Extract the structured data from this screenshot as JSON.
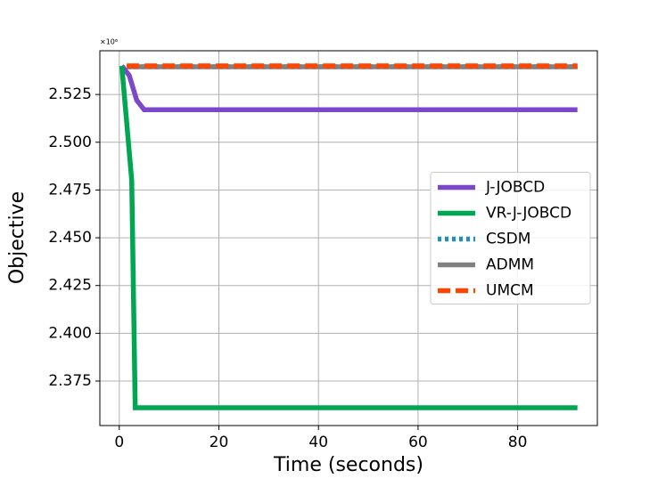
{
  "chart_data": {
    "type": "line",
    "x_label": "Time (seconds)",
    "y_label": "Objective",
    "offset_text": "×10⁶",
    "xlim": [
      -3.9,
      96
    ],
    "xticks": [
      0,
      20,
      40,
      60,
      80
    ],
    "ylim": [
      2.3517,
      2.5479
    ],
    "yticks": [
      2.375,
      {
        "value": 2.4,
        "label": "2.400"
      },
      2.425,
      {
        "value": 2.45,
        "label": "2.450"
      },
      2.475,
      {
        "value": 2.5,
        "label": "2.500"
      },
      2.525
    ],
    "grid": true,
    "legend": "center right",
    "series": [
      {
        "name": "J-JOBCD",
        "color": "#7b48cc",
        "linestyle": "solid",
        "x": [
          0.5,
          2,
          3.5,
          5,
          92
        ],
        "values": [
          2.54,
          2.535,
          2.522,
          2.517,
          2.517
        ]
      },
      {
        "name": "VR-J-JOBCD",
        "color": "#00a651",
        "linestyle": "solid",
        "x": [
          0.5,
          1.5,
          2.5,
          3.2,
          92
        ],
        "values": [
          2.54,
          2.51,
          2.48,
          2.361,
          2.361
        ]
      },
      {
        "name": "CSDM",
        "color": "#1f8fc8",
        "linestyle": "dotted",
        "x": [
          1.5,
          92
        ],
        "values": [
          2.5395,
          2.5395
        ]
      },
      {
        "name": "ADMM",
        "color": "#808080",
        "linestyle": "solid",
        "x": [
          1.5,
          92
        ],
        "values": [
          2.5395,
          2.5395
        ]
      },
      {
        "name": "UMCM",
        "color": "#ff4500",
        "linestyle": "dashed",
        "x": [
          1.5,
          92
        ],
        "values": [
          2.54,
          2.54
        ]
      }
    ]
  }
}
